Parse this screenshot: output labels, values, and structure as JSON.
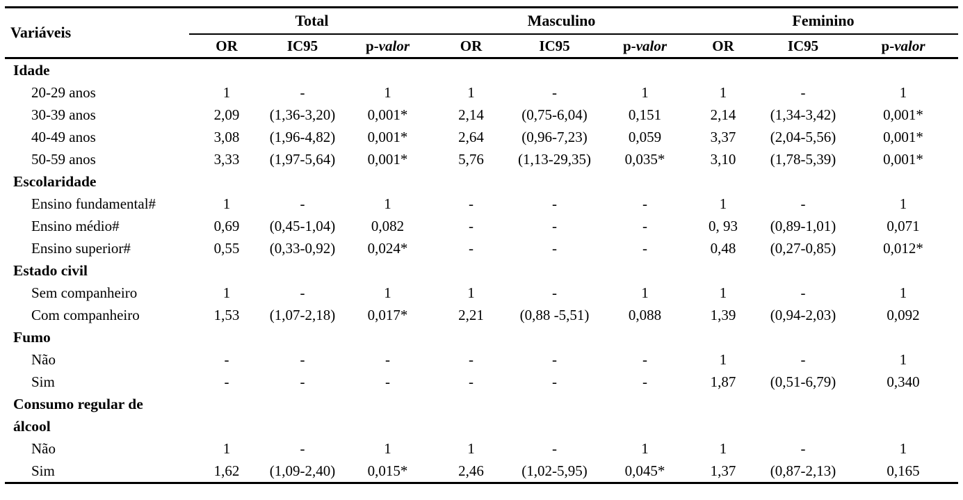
{
  "table": {
    "row_header": "Variáveis",
    "subheader": {
      "or": "OR",
      "ic": "IC95",
      "p_prefix": "p-",
      "p_word": "valor"
    },
    "groups": [
      {
        "label": "Total"
      },
      {
        "label": "Masculino"
      },
      {
        "label": "Feminino"
      }
    ],
    "sections": [
      {
        "label": "Idade",
        "rows": [
          {
            "label": "20-29 anos",
            "values": [
              "1",
              "-",
              "1",
              "1",
              "-",
              "1",
              "1",
              "-",
              "1"
            ]
          },
          {
            "label": "30-39 anos",
            "values": [
              "2,09",
              "(1,36-3,20)",
              "0,001*",
              "2,14",
              "(0,75-6,04)",
              "0,151",
              "2,14",
              "(1,34-3,42)",
              "0,001*"
            ]
          },
          {
            "label": "40-49 anos",
            "values": [
              "3,08",
              "(1,96-4,82)",
              "0,001*",
              "2,64",
              "(0,96-7,23)",
              "0,059",
              "3,37",
              "(2,04-5,56)",
              "0,001*"
            ]
          },
          {
            "label": "50-59 anos",
            "values": [
              "3,33",
              "(1,97-5,64)",
              "0,001*",
              "5,76",
              "(1,13-29,35)",
              "0,035*",
              "3,10",
              "(1,78-5,39)",
              "0,001*"
            ]
          }
        ]
      },
      {
        "label": "Escolaridade",
        "rows": [
          {
            "label": "Ensino fundamental#",
            "values": [
              "1",
              "-",
              "1",
              "-",
              "-",
              "-",
              "1",
              "-",
              "1"
            ]
          },
          {
            "label": "Ensino médio#",
            "values": [
              "0,69",
              "(0,45-1,04)",
              "0,082",
              "-",
              "-",
              "-",
              "0, 93",
              "(0,89-1,01)",
              "0,071"
            ]
          },
          {
            "label": "Ensino superior#",
            "values": [
              "0,55",
              "(0,33-0,92)",
              "0,024*",
              "-",
              "-",
              "-",
              "0,48",
              "(0,27-0,85)",
              "0,012*"
            ]
          }
        ]
      },
      {
        "label": "Estado civil",
        "rows": [
          {
            "label": "Sem companheiro",
            "values": [
              "1",
              "-",
              "1",
              "1",
              "-",
              "1",
              "1",
              "-",
              "1"
            ]
          },
          {
            "label": "Com companheiro",
            "values": [
              "1,53",
              "(1,07-2,18)",
              "0,017*",
              "2,21",
              "(0,88 -5,51)",
              "0,088",
              "1,39",
              "(0,94-2,03)",
              "0,092"
            ]
          }
        ]
      },
      {
        "label": "Fumo",
        "rows": [
          {
            "label": "Não",
            "values": [
              "-",
              "-",
              "-",
              "-",
              "-",
              "-",
              "1",
              "-",
              "1"
            ]
          },
          {
            "label": "Sim",
            "values": [
              "-",
              "-",
              "-",
              "-",
              "-",
              "-",
              "1,87",
              "(0,51-6,79)",
              "0,340"
            ]
          }
        ]
      },
      {
        "label": "Consumo regular de\nálcool",
        "rows": [
          {
            "label": "Não",
            "values": [
              "1",
              "-",
              "1",
              "1",
              "-",
              "1",
              "1",
              "-",
              "1"
            ]
          },
          {
            "label": "Sim",
            "values": [
              "1,62",
              "(1,09-2,40)",
              "0,015*",
              "2,46",
              "(1,02-5,95)",
              "0,045*",
              "1,37",
              "(0,87-2,13)",
              "0,165"
            ]
          }
        ]
      }
    ]
  }
}
